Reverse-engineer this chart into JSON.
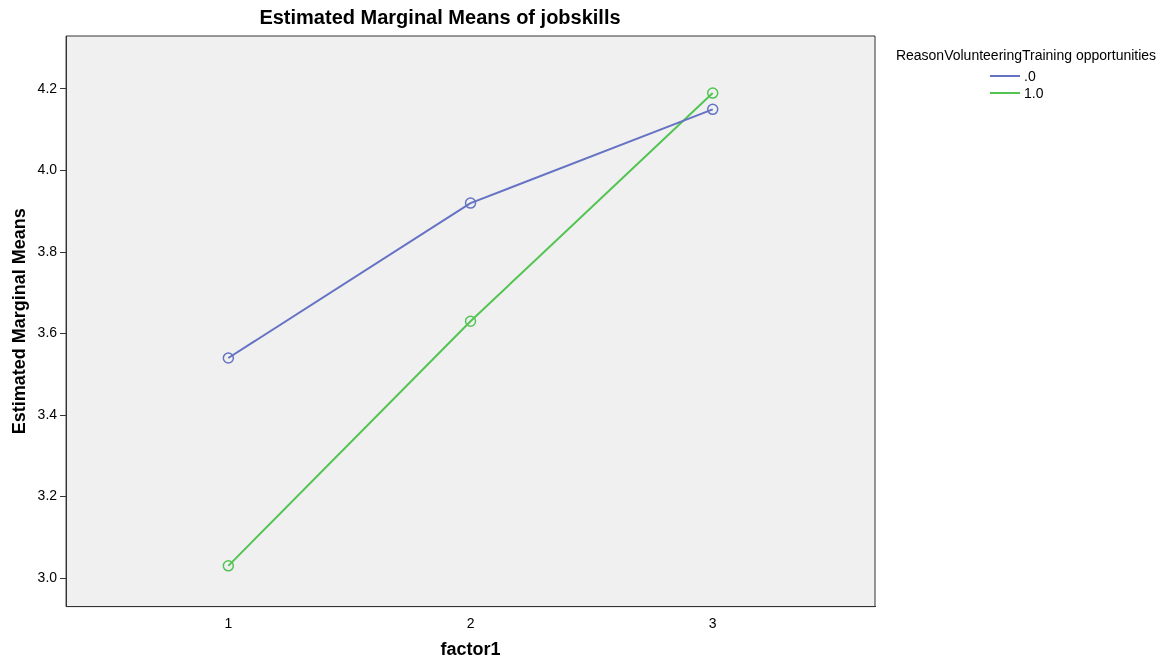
{
  "chart_data": {
    "type": "line",
    "title": "Estimated Marginal Means of jobskills",
    "xlabel": "factor1",
    "ylabel": "Estimated Marginal Means",
    "legend_title": "ReasonVolunteeringTraining opportunities",
    "x": [
      1,
      2,
      3
    ],
    "xlim": [
      0.33,
      3.67
    ],
    "xticks": [
      1,
      2,
      3
    ],
    "ylim": [
      2.93,
      4.33
    ],
    "yticks": [
      {
        "value": 3.0,
        "label": "3.0"
      },
      {
        "value": 3.2,
        "label": "3.2"
      },
      {
        "value": 3.4,
        "label": "3.4"
      },
      {
        "value": 3.6,
        "label": "3.6"
      },
      {
        "value": 3.8,
        "label": "3.8"
      },
      {
        "value": 4.0,
        "label": "4.0"
      },
      {
        "value": 4.2,
        "label": "4.2"
      }
    ],
    "series": [
      {
        "name": ".0",
        "color": "#6673c4",
        "values": [
          3.54,
          3.92,
          4.15
        ]
      },
      {
        "name": "1.0",
        "color": "#52c452",
        "values": [
          3.03,
          3.63,
          4.19
        ]
      }
    ],
    "marker": "circle",
    "line_style": "solid",
    "grid": false,
    "legend": "top right"
  }
}
